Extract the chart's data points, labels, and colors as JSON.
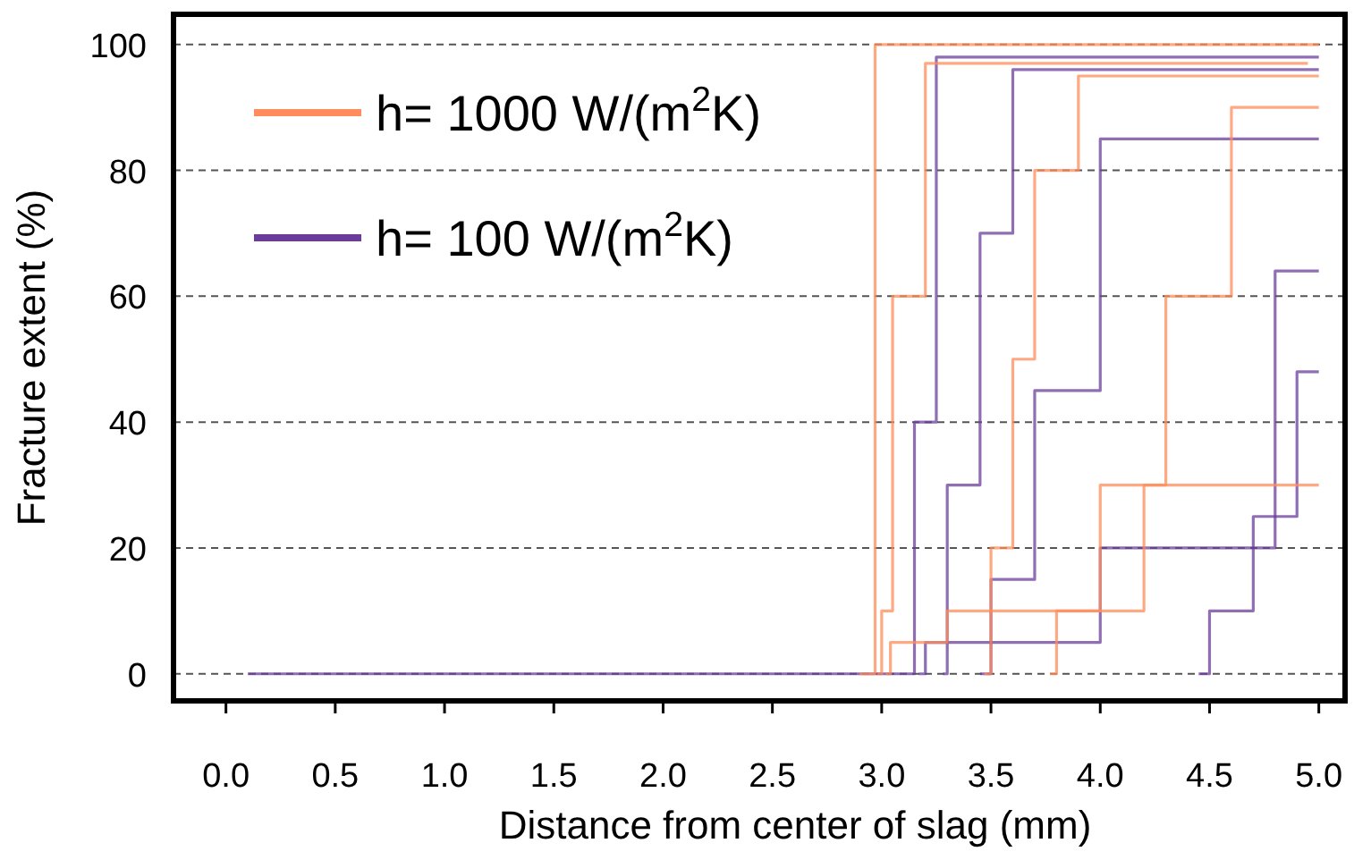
{
  "chart_data": {
    "type": "step",
    "xlabel": "Distance from center of slag (mm)",
    "ylabel": "Fracture extent (%)",
    "xlim": [
      -0.24,
      5.12
    ],
    "ylim": [
      -4.3,
      104.8
    ],
    "xticks": [
      {
        "value": 0,
        "label": "0.0"
      },
      {
        "value": 0.5,
        "label": "0.5"
      },
      {
        "value": 1,
        "label": "1.0"
      },
      {
        "value": 1.5,
        "label": "1.5"
      },
      {
        "value": 2,
        "label": "2.0"
      },
      {
        "value": 2.5,
        "label": "2.5"
      },
      {
        "value": 3,
        "label": "3.0"
      },
      {
        "value": 3.5,
        "label": "3.5"
      },
      {
        "value": 4,
        "label": "4.0"
      },
      {
        "value": 4.5,
        "label": "4.5"
      },
      {
        "value": 5,
        "label": "5.0"
      }
    ],
    "yticks": [
      0,
      20,
      40,
      60,
      80,
      100
    ],
    "grid": "y",
    "legend": "top left",
    "line_style": "solid",
    "marker": "none",
    "series": [
      {
        "name": "h= 1000 W/(m$^{2}$K)",
        "color": "#ff8c5a",
        "x": [
          2.9,
          2.97,
          5.0
        ],
        "values": [
          0,
          100,
          100
        ]
      },
      {
        "color": "#ff8c5a",
        "x": [
          2.98,
          3.0,
          3.05,
          3.2,
          4.95
        ],
        "values": [
          0,
          10,
          60,
          97,
          97
        ]
      },
      {
        "color": "#ff8c5a",
        "x": [
          3.47,
          3.5,
          3.6,
          3.7,
          3.9,
          5.0
        ],
        "values": [
          0,
          20,
          50,
          80,
          95,
          95
        ]
      },
      {
        "color": "#ff8c5a",
        "x": [
          3.77,
          3.8,
          4.0,
          4.3,
          4.6,
          5.0
        ],
        "values": [
          0,
          10,
          30,
          60,
          90,
          90
        ]
      },
      {
        "color": "#ff8c5a",
        "x": [
          3.02,
          3.04,
          3.3,
          4.2,
          5.0
        ],
        "values": [
          0,
          5,
          10,
          30,
          30
        ]
      },
      {
        "name": "h= 100 W/(m$^{2}$K)",
        "color": "#6a3d9a",
        "x": [
          0.1,
          3.15,
          3.25,
          5.0
        ],
        "values": [
          0,
          40,
          98,
          98
        ]
      },
      {
        "color": "#6a3d9a",
        "x": [
          3.28,
          3.3,
          3.45,
          3.6,
          5.0
        ],
        "values": [
          0,
          30,
          70,
          96,
          96
        ]
      },
      {
        "color": "#6a3d9a",
        "x": [
          3.45,
          3.5,
          3.7,
          4.0,
          5.0
        ],
        "values": [
          0,
          15,
          45,
          85,
          85
        ]
      },
      {
        "color": "#6a3d9a",
        "x": [
          4.45,
          4.5,
          4.7,
          4.9,
          5.0
        ],
        "values": [
          0,
          10,
          25,
          48,
          48
        ]
      },
      {
        "color": "#6a3d9a",
        "x": [
          3.17,
          3.2,
          4.0,
          4.8,
          5.0
        ],
        "values": [
          0,
          5,
          20,
          64,
          64
        ]
      }
    ]
  }
}
